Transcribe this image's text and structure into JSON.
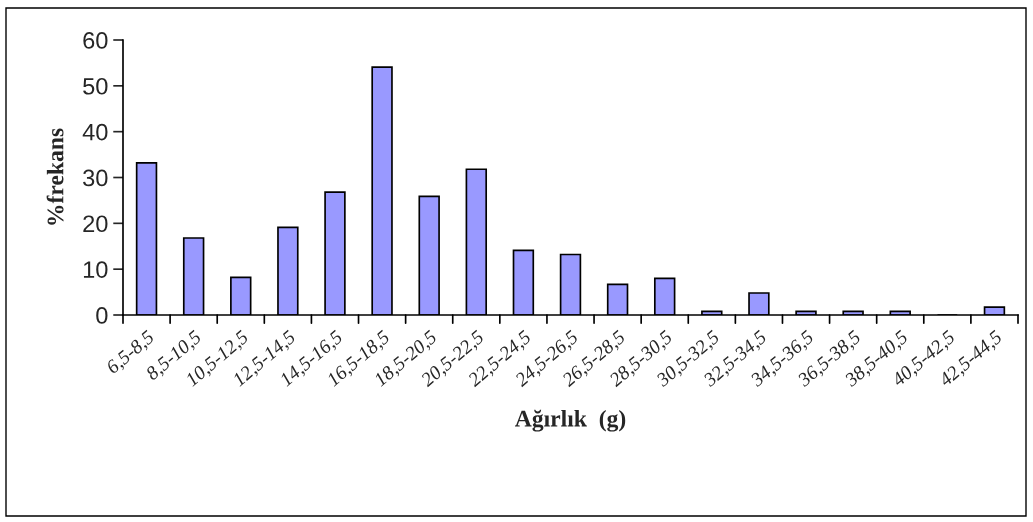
{
  "chart_data": {
    "type": "bar",
    "xlabel": "Ağırlık  (g)",
    "ylabel": "%frekans",
    "categories": [
      "6,5-8,5",
      "8,5-10,5",
      "10,5-12,5",
      "12,5-14,5",
      "14,5-16,5",
      "16,5-18,5",
      "18,5-20,5",
      "20,5-22,5",
      "22,5-24,5",
      "24,5-26,5",
      "26,5-28,5",
      "28,5-30,5",
      "30,5-32,5",
      "32,5-34,5",
      "34,5-36,5",
      "36,5-38,5",
      "38,5-40,5",
      "40,5-42,5",
      "42,5-44,5"
    ],
    "values": [
      33.2,
      16.8,
      8.2,
      19.1,
      26.8,
      54.1,
      25.9,
      31.8,
      14.1,
      13.2,
      6.7,
      8.0,
      0.8,
      4.8,
      0.8,
      0.8,
      0.8,
      0,
      1.7
    ],
    "color": "#9999ff",
    "ylim": [
      0,
      60
    ],
    "yticks": [
      0,
      10,
      20,
      30,
      40,
      50,
      60
    ],
    "grid": false,
    "legend": false
  }
}
